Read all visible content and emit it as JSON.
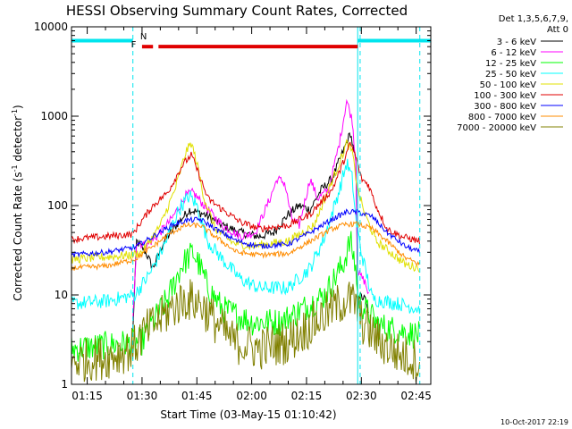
{
  "chart_data": {
    "type": "line",
    "title": "HESSI Observing Summary Count Rates, Corrected",
    "xlabel": "Start Time (03-May-15 01:10:42)",
    "ylabel": "Corrected Count Rate (s⁻¹ detector⁻¹)",
    "y_scale": "log",
    "ylim": [
      1,
      10000
    ],
    "x_range": [
      "01:10:42",
      "02:49:00"
    ],
    "x_ticks": [
      "01:15",
      "01:30",
      "01:45",
      "02:00",
      "02:15",
      "02:30",
      "02:45"
    ],
    "y_ticks": [
      "1",
      "10",
      "100",
      "1000",
      "10000"
    ],
    "legend_header": [
      "Det 1,3,5,6,7,9,",
      "Att 0"
    ],
    "legend_placement": "right, outside plot",
    "timestamp": "10-Oct-2017 22:19",
    "flags": [
      {
        "label": "",
        "color": "#00e5ee",
        "y": 7000,
        "segments": [
          [
            "01:10:42",
            "01:27:30"
          ],
          [
            "02:29:00",
            "02:49:00"
          ]
        ]
      },
      {
        "label": "N",
        "color": "#00e5ee",
        "y": 7000,
        "segments": []
      },
      {
        "label": "F",
        "color": "#e00000",
        "y": 6000,
        "segments": [
          [
            "01:30:00",
            "01:33:00"
          ],
          [
            "01:34:30",
            "02:29:00"
          ]
        ]
      }
    ],
    "vertical_markers": [
      {
        "time": "01:10:42",
        "style": "solid",
        "color": "#00e5ee"
      },
      {
        "time": "01:27:30",
        "style": "dashed",
        "color": "#00e5ee"
      },
      {
        "time": "02:29:00",
        "style": "solid",
        "color": "#00e5ee"
      },
      {
        "time": "02:29:40",
        "style": "dashed",
        "color": "#00e5ee"
      },
      {
        "time": "02:46:00",
        "style": "dashed",
        "color": "#00e5ee"
      }
    ],
    "series": [
      {
        "name": "3 - 6 keV",
        "color": "#000000",
        "noise": 0.05,
        "points": [
          [
            "01:27:30",
            4
          ],
          [
            "01:28:30",
            40
          ],
          [
            "01:31",
            30
          ],
          [
            "01:33",
            20
          ],
          [
            "01:36",
            40
          ],
          [
            "01:40",
            65
          ],
          [
            "01:43",
            90
          ],
          [
            "01:47",
            80
          ],
          [
            "01:52",
            60
          ],
          [
            "01:57",
            50
          ],
          [
            "02:02",
            45
          ],
          [
            "02:06",
            50
          ],
          [
            "02:10",
            80
          ],
          [
            "02:13",
            100
          ],
          [
            "02:16",
            90
          ],
          [
            "02:19",
            150
          ],
          [
            "02:22",
            200
          ],
          [
            "02:25",
            400
          ],
          [
            "02:27",
            650
          ],
          [
            "02:28:30",
            300
          ],
          [
            "02:29",
            10
          ],
          [
            "02:31",
            9
          ],
          [
            "02:32",
            6
          ]
        ]
      },
      {
        "name": "6 - 12 keV",
        "color": "#ff00ff",
        "noise": 0.05,
        "points": [
          [
            "01:27:30",
            5
          ],
          [
            "01:28:30",
            40
          ],
          [
            "01:31",
            35
          ],
          [
            "01:34",
            45
          ],
          [
            "01:38",
            70
          ],
          [
            "01:42",
            130
          ],
          [
            "01:44",
            140
          ],
          [
            "01:47",
            100
          ],
          [
            "01:52",
            60
          ],
          [
            "01:57",
            45
          ],
          [
            "02:01",
            50
          ],
          [
            "02:05",
            120
          ],
          [
            "02:07",
            200
          ],
          [
            "02:09",
            180
          ],
          [
            "02:11",
            70
          ],
          [
            "02:13",
            60
          ],
          [
            "02:16",
            200
          ],
          [
            "02:18",
            120
          ],
          [
            "02:21",
            150
          ],
          [
            "02:24",
            500
          ],
          [
            "02:26",
            1500
          ],
          [
            "02:27:30",
            900
          ],
          [
            "02:28:30",
            300
          ],
          [
            "02:29",
            18
          ],
          [
            "02:31",
            14
          ],
          [
            "02:32",
            10
          ]
        ]
      },
      {
        "name": "12 - 25 keV",
        "color": "#00ff00",
        "noise": 0.16,
        "points": [
          [
            "01:10:42",
            2.5
          ],
          [
            "01:30",
            3
          ],
          [
            "01:33",
            5
          ],
          [
            "01:37",
            9
          ],
          [
            "01:41",
            22
          ],
          [
            "01:44",
            30
          ],
          [
            "01:46",
            20
          ],
          [
            "01:48",
            12
          ],
          [
            "01:52",
            7
          ],
          [
            "02:00",
            5
          ],
          [
            "02:08",
            5
          ],
          [
            "02:14",
            7
          ],
          [
            "02:20",
            10
          ],
          [
            "02:25",
            22
          ],
          [
            "02:27",
            40
          ],
          [
            "02:28:30",
            20
          ],
          [
            "02:29",
            9
          ],
          [
            "02:31",
            7
          ],
          [
            "02:35",
            4.5
          ],
          [
            "02:40",
            4
          ],
          [
            "02:46",
            3.5
          ]
        ]
      },
      {
        "name": "25 - 50 keV",
        "color": "#00ffff",
        "noise": 0.08,
        "points": [
          [
            "01:10:42",
            8
          ],
          [
            "01:20",
            8.5
          ],
          [
            "01:28",
            10
          ],
          [
            "01:32",
            17
          ],
          [
            "01:36",
            35
          ],
          [
            "01:40",
            90
          ],
          [
            "01:43",
            130
          ],
          [
            "01:45",
            100
          ],
          [
            "01:48",
            40
          ],
          [
            "01:52",
            25
          ],
          [
            "01:57",
            15
          ],
          [
            "02:02",
            12
          ],
          [
            "02:10",
            12
          ],
          [
            "02:16",
            20
          ],
          [
            "02:20",
            45
          ],
          [
            "02:24",
            150
          ],
          [
            "02:26",
            300
          ],
          [
            "02:27:30",
            200
          ],
          [
            "02:28:30",
            70
          ],
          [
            "02:30",
            30
          ],
          [
            "02:33",
            9
          ],
          [
            "02:40",
            8
          ],
          [
            "02:46",
            7
          ]
        ]
      },
      {
        "name": "50 - 100 keV",
        "color": "#e0e000",
        "noise": 0.05,
        "points": [
          [
            "01:10:42",
            25
          ],
          [
            "01:27:30",
            28
          ],
          [
            "01:30",
            30
          ],
          [
            "01:35",
            60
          ],
          [
            "01:39",
            150
          ],
          [
            "01:42",
            400
          ],
          [
            "01:43:30",
            500
          ],
          [
            "01:45",
            300
          ],
          [
            "01:47",
            120
          ],
          [
            "01:50",
            55
          ],
          [
            "01:55",
            38
          ],
          [
            "02:00",
            35
          ],
          [
            "02:10",
            40
          ],
          [
            "02:17",
            60
          ],
          [
            "02:21",
            150
          ],
          [
            "02:24",
            300
          ],
          [
            "02:26",
            500
          ],
          [
            "02:27:30",
            400
          ],
          [
            "02:29",
            150
          ],
          [
            "02:31",
            80
          ],
          [
            "02:34",
            40
          ],
          [
            "02:38",
            30
          ],
          [
            "02:42",
            22
          ],
          [
            "02:46",
            20
          ]
        ]
      },
      {
        "name": "100 - 300 keV",
        "color": "#e00000",
        "noise": 0.04,
        "points": [
          [
            "01:10:42",
            42
          ],
          [
            "01:20",
            45
          ],
          [
            "01:27:30",
            48
          ],
          [
            "01:29",
            60
          ],
          [
            "01:33",
            100
          ],
          [
            "01:37",
            140
          ],
          [
            "01:41",
            280
          ],
          [
            "01:43:30",
            370
          ],
          [
            "01:46",
            200
          ],
          [
            "01:48",
            120
          ],
          [
            "01:52",
            90
          ],
          [
            "01:57",
            65
          ],
          [
            "02:02",
            55
          ],
          [
            "02:10",
            60
          ],
          [
            "02:16",
            80
          ],
          [
            "02:22",
            150
          ],
          [
            "02:25",
            300
          ],
          [
            "02:27",
            500
          ],
          [
            "02:28:30",
            350
          ],
          [
            "02:30",
            200
          ],
          [
            "02:32",
            170
          ],
          [
            "02:34",
            100
          ],
          [
            "02:37",
            55
          ],
          [
            "02:41",
            45
          ],
          [
            "02:46",
            40
          ]
        ]
      },
      {
        "name": "300 - 800 keV",
        "color": "#0000ff",
        "noise": 0.03,
        "points": [
          [
            "01:10:42",
            28
          ],
          [
            "01:20",
            30
          ],
          [
            "01:28",
            34
          ],
          [
            "01:33",
            45
          ],
          [
            "01:38",
            60
          ],
          [
            "01:42",
            68
          ],
          [
            "01:46",
            70
          ],
          [
            "01:50",
            55
          ],
          [
            "01:56",
            40
          ],
          [
            "02:02",
            35
          ],
          [
            "02:10",
            37
          ],
          [
            "02:16",
            50
          ],
          [
            "02:22",
            70
          ],
          [
            "02:26",
            85
          ],
          [
            "02:29",
            85
          ],
          [
            "02:33",
            75
          ],
          [
            "02:37",
            50
          ],
          [
            "02:42",
            35
          ],
          [
            "02:46",
            30
          ]
        ]
      },
      {
        "name": "800 - 7000 keV",
        "color": "#ff8c00",
        "noise": 0.03,
        "points": [
          [
            "01:10:42",
            20
          ],
          [
            "01:20",
            21
          ],
          [
            "01:28",
            25
          ],
          [
            "01:33",
            35
          ],
          [
            "01:38",
            50
          ],
          [
            "01:42",
            60
          ],
          [
            "01:46",
            60
          ],
          [
            "01:50",
            45
          ],
          [
            "01:56",
            30
          ],
          [
            "02:02",
            28
          ],
          [
            "02:10",
            29
          ],
          [
            "02:16",
            40
          ],
          [
            "02:22",
            55
          ],
          [
            "02:26",
            62
          ],
          [
            "02:29",
            62
          ],
          [
            "02:33",
            55
          ],
          [
            "02:37",
            40
          ],
          [
            "02:42",
            26
          ],
          [
            "02:46",
            22
          ]
        ]
      },
      {
        "name": "7000 - 20000 keV",
        "color": "#808000",
        "noise": 0.25,
        "points": [
          [
            "01:10:42",
            1.8
          ],
          [
            "01:20",
            2
          ],
          [
            "01:27:30",
            2.5
          ],
          [
            "01:30",
            3.5
          ],
          [
            "01:34",
            5
          ],
          [
            "01:38",
            7
          ],
          [
            "01:42",
            9
          ],
          [
            "01:46",
            8
          ],
          [
            "01:50",
            5
          ],
          [
            "01:55",
            3
          ],
          [
            "02:02",
            2.5
          ],
          [
            "02:10",
            3
          ],
          [
            "02:16",
            4.5
          ],
          [
            "02:22",
            7
          ],
          [
            "02:26",
            9
          ],
          [
            "02:28:30",
            8
          ],
          [
            "02:30",
            5
          ],
          [
            "02:35",
            3
          ],
          [
            "02:40",
            2.2
          ],
          [
            "02:46",
            1.8
          ]
        ]
      }
    ]
  }
}
